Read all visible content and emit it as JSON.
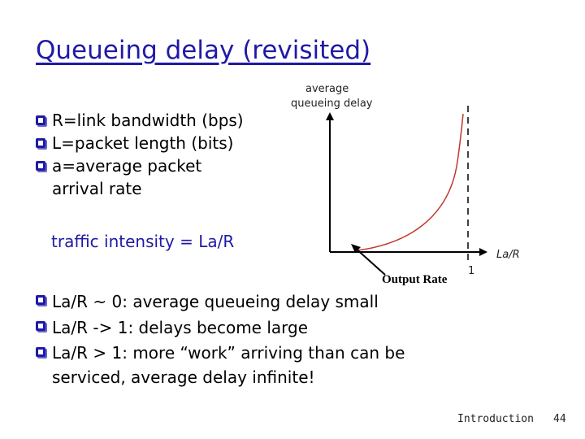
{
  "title": "Queueing delay (revisited)",
  "bullets_top": [
    "R=link bandwidth (bps)",
    "L=packet length (bits)",
    "a=average packet arrival rate"
  ],
  "traffic_intensity": "traffic intensity = La/R",
  "graph": {
    "y_label_line1": "average",
    "y_label_line2": "queueing delay",
    "x_label": "La/R",
    "tick_one": "1",
    "output_rate_label": "Output Rate"
  },
  "bullets_bottom": [
    "La/R ~ 0: average queueing delay small",
    "La/R -> 1: delays become large",
    "La/R > 1: more “work” arriving than can be serviced, average delay infinite!"
  ],
  "footer": {
    "section": "Introduction",
    "page": "44"
  },
  "colors": {
    "title": "#1f1aa6",
    "bullet": "#1f1aa6",
    "curve": "#c0392b"
  }
}
